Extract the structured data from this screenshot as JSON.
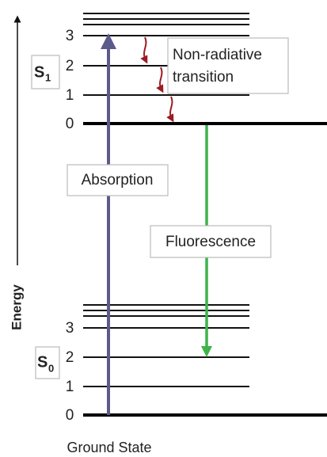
{
  "axis_label": "Energy",
  "states": [
    {
      "label": "S",
      "subscript": "1",
      "levels": [
        "3",
        "2",
        "1",
        "0"
      ]
    },
    {
      "label": "S",
      "subscript": "0",
      "levels": [
        "3",
        "2",
        "1",
        "0"
      ]
    }
  ],
  "annotations": {
    "absorption": "Absorption",
    "fluorescence": "Fluorescence",
    "non_radiative": [
      "Non-radiative",
      "transition"
    ]
  },
  "footer": "Ground State"
}
